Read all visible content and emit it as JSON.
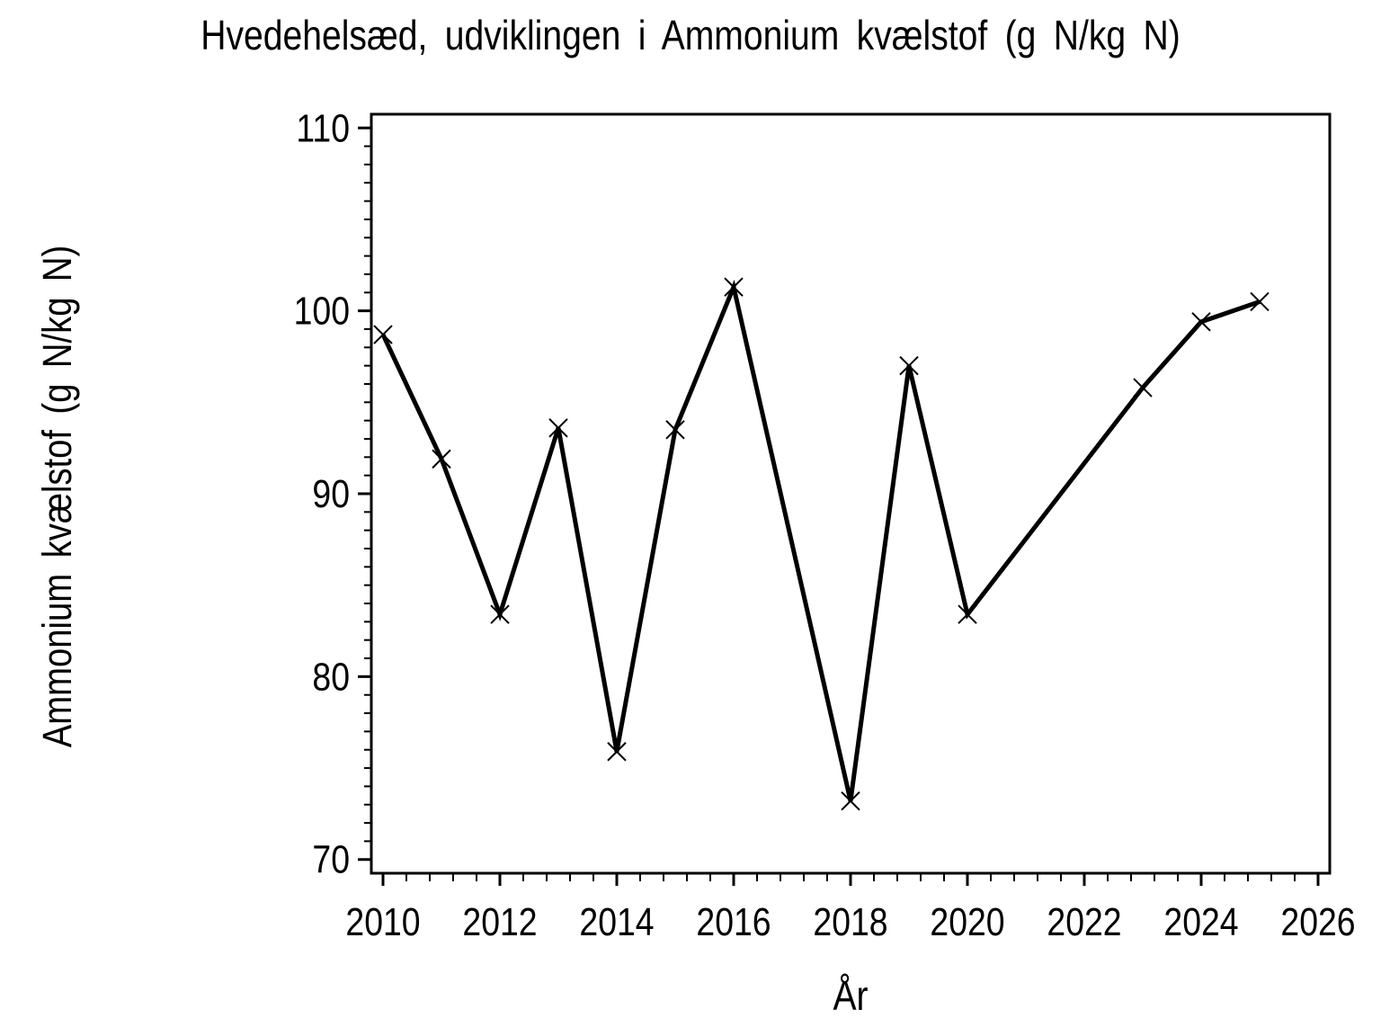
{
  "title": "Hvedehelsæd, udviklingen i Ammonium kvælstof (g N/kg N)",
  "background_color": "#ffffff",
  "ink_color": "#000000",
  "chart_data": {
    "type": "line",
    "title": "Hvedehelsæd, udviklingen i Ammonium kvælstof (g N/kg N)",
    "xlabel": "År",
    "ylabel": "Ammonium kvælstof (g N/kg N)",
    "x": [
      2010,
      2011,
      2012,
      2013,
      2014,
      2015,
      2016,
      2018,
      2019,
      2020,
      2023,
      2024,
      2025
    ],
    "y": [
      98.7,
      91.9,
      83.4,
      93.6,
      75.9,
      93.5,
      101.3,
      73.2,
      97.0,
      83.4,
      95.8,
      99.4,
      100.5
    ],
    "marker": "x",
    "line_color": "#000000",
    "line_width": 5,
    "x_ticks": [
      2010,
      2012,
      2014,
      2016,
      2018,
      2020,
      2022,
      2024,
      2026
    ],
    "y_ticks": [
      70,
      80,
      90,
      100,
      110
    ],
    "x_minor_step": 0.4,
    "y_minor_step": 1,
    "xlim": [
      2009.8,
      2026.2
    ],
    "ylim": [
      69.25,
      110.75
    ],
    "grid": false,
    "legend": false,
    "frame": true
  }
}
